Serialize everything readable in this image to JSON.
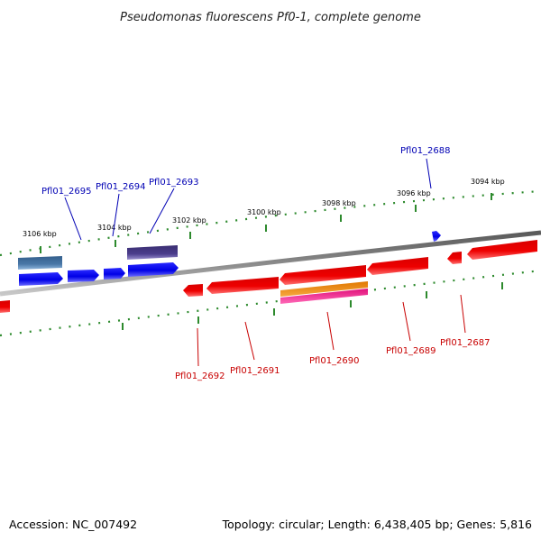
{
  "title": "Pseudomonas fluorescens Pf0-1, complete genome",
  "footer": {
    "accession": "Accession: NC_007492",
    "summary": "Topology: circular; Length: 6,438,405 bp; Genes: 5,816"
  },
  "ticks": [
    {
      "label": "3094 kbp",
      "kbp": 3094
    },
    {
      "label": "3096 kbp",
      "kbp": 3096
    },
    {
      "label": "3098 kbp",
      "kbp": 3098
    },
    {
      "label": "3100 kbp",
      "kbp": 3100
    },
    {
      "label": "3102 kbp",
      "kbp": 3102
    },
    {
      "label": "3104 kbp",
      "kbp": 3104
    },
    {
      "label": "3106 kbp",
      "kbp": 3106
    }
  ],
  "gene_labels_forward": [
    {
      "name": "Pfl01_2688"
    },
    {
      "name": "Pfl01_2693"
    },
    {
      "name": "Pfl01_2694"
    },
    {
      "name": "Pfl01_2695"
    }
  ],
  "gene_labels_reverse": [
    {
      "name": "Pfl01_2687"
    },
    {
      "name": "Pfl01_2689"
    },
    {
      "name": "Pfl01_2690"
    },
    {
      "name": "Pfl01_2691"
    },
    {
      "name": "Pfl01_2692"
    }
  ],
  "colors": {
    "backbone": "#7a7a7a",
    "forward_gene": "#0000ee",
    "reverse_gene": "#ee0000",
    "tick_mark": "#2d8a2d",
    "forward_label": "#0000b4",
    "reverse_label": "#c80000",
    "feature_steelblue": "#4a78a8",
    "feature_slateblue": "#4b3d8c",
    "feature_orange": "#f08a10",
    "feature_magenta": "#f0208c"
  }
}
